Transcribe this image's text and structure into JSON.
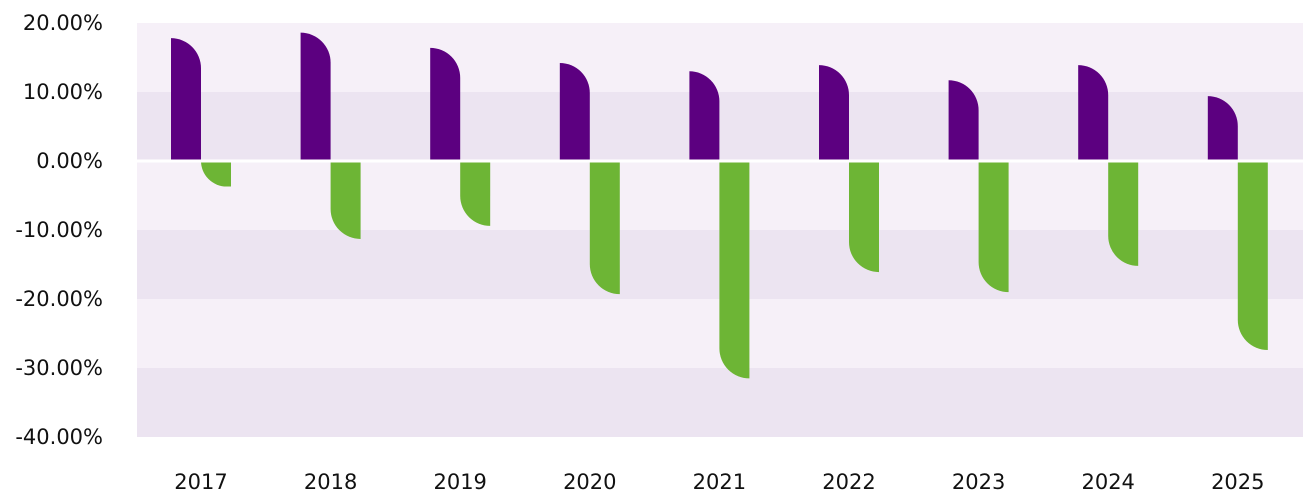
{
  "chart_data": {
    "type": "bar",
    "categories": [
      "2017",
      "2018",
      "2019",
      "2020",
      "2021",
      "2022",
      "2023",
      "2024",
      "2025"
    ],
    "series": [
      {
        "values": [
          17.8,
          18.6,
          16.4,
          14.2,
          13.0,
          13.9,
          11.7,
          13.9,
          9.4
        ]
      },
      {
        "values": [
          -3.7,
          -11.3,
          -9.4,
          -19.3,
          -31.5,
          -16.1,
          -19.0,
          -15.2,
          -27.4
        ]
      }
    ],
    "colors": {
      "positive": "#5c0080",
      "negative": "#6db535",
      "band_light": "#f6f0f8",
      "band_dark": "#ece4f1",
      "zero_line": "#ffffff"
    },
    "y_ticks": [
      "20.00%",
      "10.00%",
      "0.00%",
      "-10.00%",
      "-20.00%",
      "-30.00%",
      "-40.00%"
    ],
    "ylim": [
      -40,
      20
    ],
    "grid": "alternating bands",
    "legend": "none"
  }
}
